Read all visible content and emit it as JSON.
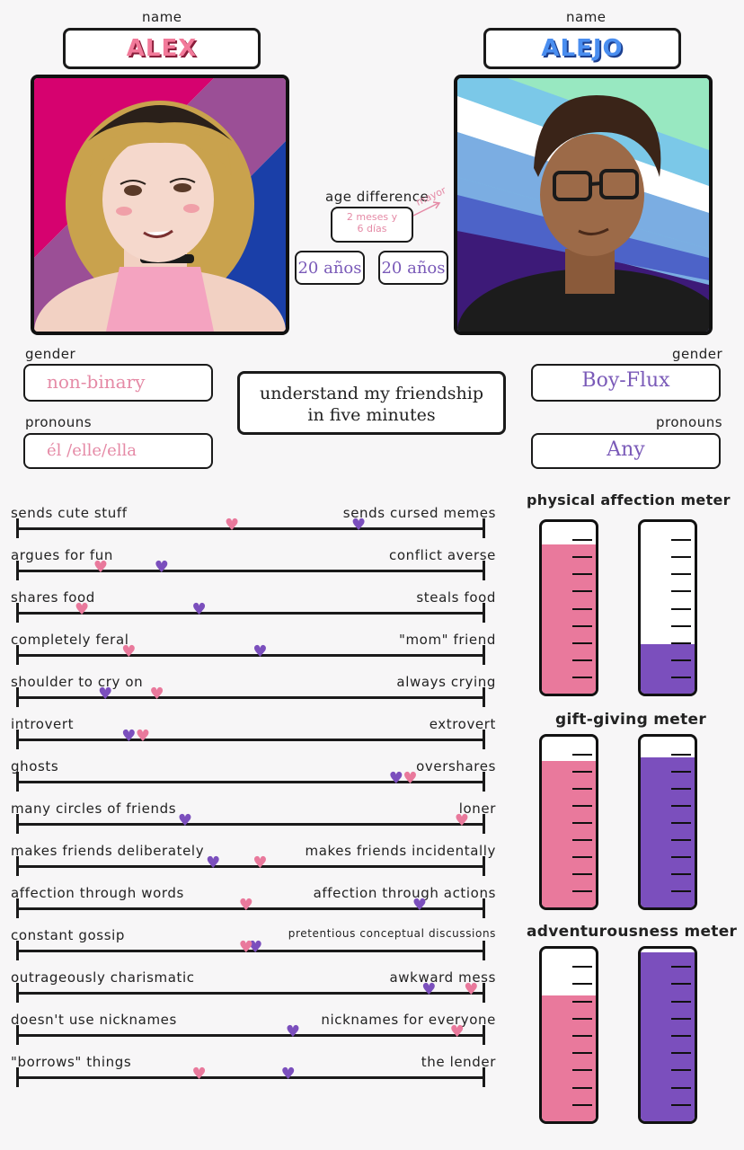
{
  "left_person": {
    "name_label": "name",
    "name": "ALEX",
    "gender_label": "gender",
    "gender": "non-binary",
    "pronouns_label": "pronouns",
    "pronouns": "él /elle/ella",
    "age": "20 años"
  },
  "right_person": {
    "name_label": "name",
    "name": "ALEJO",
    "gender_label": "gender",
    "gender": "Boy-Flux",
    "pronouns_label": "pronouns",
    "pronouns": "Any",
    "age": "20 años"
  },
  "age_difference": {
    "label": "age difference",
    "value_line1": "2 meses y",
    "value_line2": "6 días",
    "note": "mayor"
  },
  "center_title_line1": "understand my friendship",
  "center_title_line2": "in five minutes",
  "colors": {
    "pink": "#e9799c",
    "purple": "#7b4fbd"
  },
  "scales": [
    {
      "left": "sends cute stuff",
      "right": "sends cursed memes",
      "pink": 0.46,
      "purple": 0.73
    },
    {
      "left": "argues for fun",
      "right": "conflict averse",
      "pink": 0.18,
      "purple": 0.31
    },
    {
      "left": "shares food",
      "right": "steals food",
      "pink": 0.14,
      "purple": 0.39
    },
    {
      "left": "completely feral",
      "right": "\"mom\" friend",
      "pink": 0.24,
      "purple": 0.52
    },
    {
      "left": "shoulder to cry on",
      "right": "always crying",
      "pink": 0.3,
      "purple": 0.19
    },
    {
      "left": "introvert",
      "right": "extrovert",
      "pink": 0.27,
      "purple": 0.24
    },
    {
      "left": "ghosts",
      "right": "overshares",
      "pink": 0.84,
      "purple": 0.81
    },
    {
      "left": "many circles of friends",
      "right": "loner",
      "pink": 0.95,
      "purple": 0.36
    },
    {
      "left": "makes friends deliberately",
      "right": "makes friends incidentally",
      "pink": 0.52,
      "purple": 0.42
    },
    {
      "left": "affection through words",
      "right": "affection through actions",
      "pink": 0.49,
      "purple": 0.86
    },
    {
      "left": "constant gossip",
      "right": "pretentious conceptual discussions",
      "pink": 0.49,
      "purple": 0.51
    },
    {
      "left": "outrageously charismatic",
      "right": "awkward mess",
      "pink": 0.97,
      "purple": 0.88
    },
    {
      "left": "doesn't use nicknames",
      "right": "nicknames for everyone",
      "pink": 0.94,
      "purple": 0.59
    },
    {
      "left": "\"borrows\" things",
      "right": "the lender",
      "pink": 0.39,
      "purple": 0.58
    }
  ],
  "meters": [
    {
      "title": "physical affection meter",
      "pink": 0.87,
      "purple": 0.29
    },
    {
      "title": "gift-giving meter",
      "pink": 0.86,
      "purple": 0.88
    },
    {
      "title": "adventurousness meter",
      "pink": 0.73,
      "purple": 0.98
    }
  ]
}
